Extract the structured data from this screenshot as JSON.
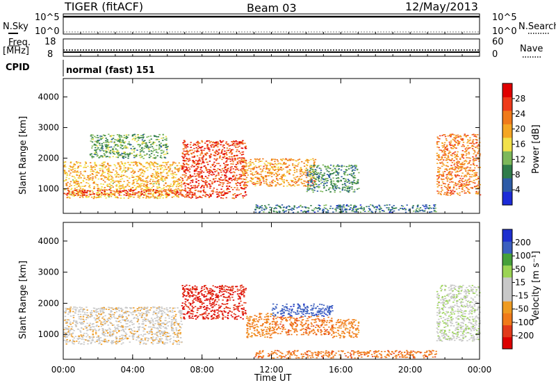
{
  "header": {
    "station": "TIGER (fitACF)",
    "beam": "Beam 03",
    "date": "12/May/2013"
  },
  "aux_panels": {
    "nsky_label": "N.Sky",
    "nsky_ticks": [
      "10^5",
      "10^0"
    ],
    "nsearch_label": "N.Search",
    "nsearch_ticks": [
      "10^5",
      "10^0"
    ],
    "freq_label_1": "Freq.",
    "freq_label_2": "[MHz]",
    "freq_ticks": [
      "18",
      "8"
    ],
    "nave_label": "Nave",
    "nave_ticks": [
      "60",
      "0"
    ],
    "cpid_label": "CPID",
    "cpid_text": "normal (fast) 151"
  },
  "colors": {
    "power_scale": [
      "#1c2bd8",
      "#2d5ba6",
      "#2f7c4a",
      "#7db85a",
      "#f2e14a",
      "#f5a623",
      "#f07a1a",
      "#ee3a1a",
      "#e00000"
    ],
    "velocity_scale": [
      "#1e2fcf",
      "#3b5fbf",
      "#46a03a",
      "#9bd454",
      "#c8c8c8",
      "#c8c8c8",
      "#ee9b22",
      "#f07a1a",
      "#e23a1a",
      "#dd0000"
    ]
  },
  "chart_data": [
    {
      "type": "heatmap",
      "name": "power",
      "ylabel": "Slant Range [km]",
      "xlabel": "",
      "x_ticks": [
        "00:00",
        "04:00",
        "08:00",
        "12:00",
        "16:00",
        "20:00",
        "00:00"
      ],
      "y_ticks": [
        "1000",
        "2000",
        "3000",
        "4000"
      ],
      "ylim": [
        200,
        4600
      ],
      "xlim_hours": [
        0,
        24
      ],
      "colorbar_label": "Power [dB]",
      "colorbar_ticks": [
        "4",
        "8",
        "12",
        "16",
        "20",
        "24",
        "28"
      ],
      "colorbar_range": [
        0,
        30
      ],
      "echo_regions": [
        {
          "t0": 0.0,
          "t1": 6.8,
          "r0": 700,
          "r1": 1900,
          "power": 18
        },
        {
          "t0": 0.0,
          "t1": 6.8,
          "r0": 800,
          "r1": 1000,
          "power": 26
        },
        {
          "t0": 6.8,
          "t1": 10.5,
          "r0": 700,
          "r1": 2600,
          "power": 26
        },
        {
          "t0": 1.5,
          "t1": 6.0,
          "r0": 2000,
          "r1": 2800,
          "power": 10
        },
        {
          "t0": 10.3,
          "t1": 14.5,
          "r0": 1100,
          "r1": 2000,
          "power": 20
        },
        {
          "t0": 14.0,
          "t1": 17.0,
          "r0": 900,
          "r1": 1800,
          "power": 8
        },
        {
          "t0": 21.5,
          "t1": 24.0,
          "r0": 800,
          "r1": 2800,
          "power": 22
        },
        {
          "t0": 11.0,
          "t1": 21.5,
          "r0": 250,
          "r1": 500,
          "power": 6
        }
      ]
    },
    {
      "type": "heatmap",
      "name": "velocity",
      "ylabel": "Slant Range [km]",
      "xlabel": "Time UT",
      "x_ticks": [
        "00:00",
        "04:00",
        "08:00",
        "12:00",
        "16:00",
        "20:00",
        "00:00"
      ],
      "y_ticks": [
        "1000",
        "2000",
        "3000",
        "4000"
      ],
      "ylim": [
        200,
        4600
      ],
      "xlim_hours": [
        0,
        24
      ],
      "colorbar_label": "Velocity [m s⁻¹]",
      "colorbar_ticks": [
        "200",
        "100",
        "50",
        "15",
        "-15",
        "-50",
        "-100",
        "-200"
      ],
      "echo_regions": [
        {
          "t0": 0.0,
          "t1": 6.8,
          "r0": 700,
          "r1": 1900,
          "velocity": 0
        },
        {
          "t0": 6.8,
          "t1": 10.5,
          "r0": 1500,
          "r1": 2600,
          "velocity": -150
        },
        {
          "t0": 10.5,
          "t1": 12.0,
          "r0": 900,
          "r1": 1700,
          "velocity": -60
        },
        {
          "t0": 12.0,
          "t1": 15.5,
          "r0": 1600,
          "r1": 2000,
          "velocity": 180
        },
        {
          "t0": 12.0,
          "t1": 15.5,
          "r0": 1000,
          "r1": 1600,
          "velocity": -80
        },
        {
          "t0": 15.5,
          "t1": 17.0,
          "r0": 900,
          "r1": 1500,
          "velocity": -60
        },
        {
          "t0": 21.5,
          "t1": 24.0,
          "r0": 800,
          "r1": 2600,
          "velocity": 40
        },
        {
          "t0": 11.0,
          "t1": 21.5,
          "r0": 250,
          "r1": 500,
          "velocity": -80
        }
      ]
    }
  ]
}
